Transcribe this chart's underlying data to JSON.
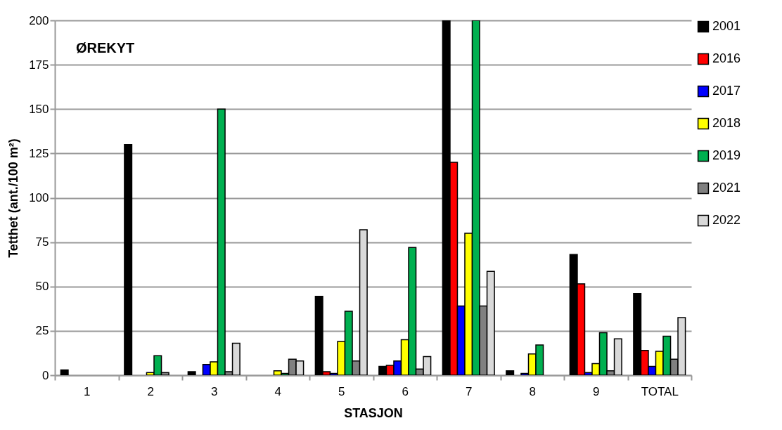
{
  "chart_data": {
    "type": "bar",
    "title": "ØREKYT",
    "xlabel": "STASJON",
    "ylabel": "Tetthet (ant./100 m²)",
    "categories": [
      "1",
      "2",
      "3",
      "4",
      "5",
      "6",
      "7",
      "8",
      "9",
      "TOTAL"
    ],
    "series": [
      {
        "name": "2001",
        "color": "#000000",
        "values": [
          3,
          130,
          2,
          null,
          44.5,
          5,
          200,
          2.5,
          68,
          46
        ]
      },
      {
        "name": "2016",
        "color": "#ff0000",
        "values": [
          null,
          null,
          null,
          null,
          2,
          5.5,
          120,
          null,
          51.5,
          14
        ]
      },
      {
        "name": "2017",
        "color": "#0000ff",
        "values": [
          null,
          null,
          6,
          null,
          1,
          8,
          39,
          1,
          1.5,
          5
        ]
      },
      {
        "name": "2018",
        "color": "#ffff00",
        "values": [
          null,
          1.5,
          7.5,
          2.5,
          19,
          20,
          80,
          12,
          6.5,
          13.5
        ]
      },
      {
        "name": "2019",
        "color": "#00b050",
        "values": [
          null,
          11,
          150,
          1,
          36,
          72,
          200,
          17,
          24,
          22
        ]
      },
      {
        "name": "2021",
        "color": "#808080",
        "values": [
          null,
          1.5,
          2,
          9,
          8,
          3.5,
          39,
          null,
          2.5,
          9
        ]
      },
      {
        "name": "2022",
        "color": "#d9d9d9",
        "values": [
          null,
          null,
          18,
          8,
          82,
          10.5,
          58.5,
          null,
          20.5,
          32.5
        ]
      }
    ],
    "ylim": [
      0,
      200
    ],
    "yticks": [
      0,
      25,
      50,
      75,
      100,
      125,
      150,
      175,
      200
    ],
    "grid": "y",
    "legend": "right"
  }
}
